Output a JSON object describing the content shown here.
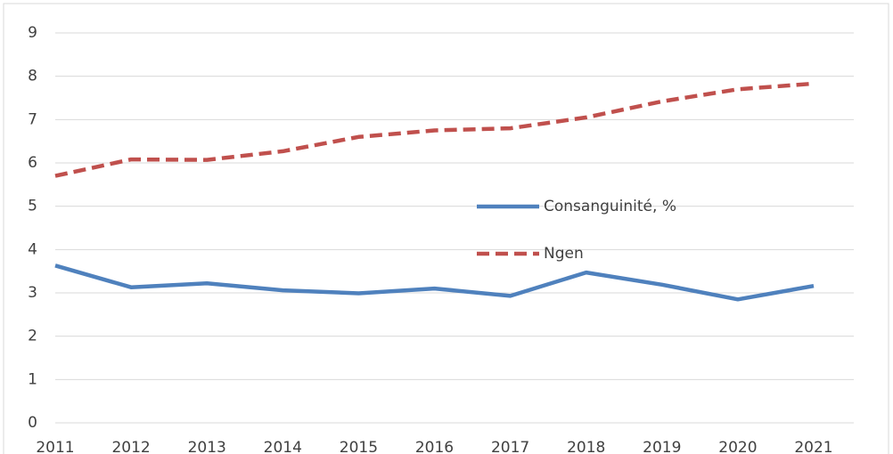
{
  "chart_data": {
    "type": "line",
    "categories": [
      "2011",
      "2012",
      "2013",
      "2014",
      "2015",
      "2016",
      "2017",
      "2018",
      "2019",
      "2020",
      "2021"
    ],
    "series": [
      {
        "name": "Consanguinité, %",
        "color": "#4f81bd",
        "dash": false,
        "values": [
          3.63,
          3.13,
          3.22,
          3.06,
          2.99,
          3.1,
          2.93,
          3.47,
          3.19,
          2.85,
          3.16
        ]
      },
      {
        "name": "Ngen",
        "color": "#c0504d",
        "dash": true,
        "values": [
          5.7,
          6.08,
          6.07,
          6.27,
          6.6,
          6.75,
          6.8,
          7.05,
          7.42,
          7.7,
          7.83
        ]
      }
    ],
    "ylim": [
      0,
      9
    ],
    "yticks": [
      0,
      1,
      2,
      3,
      4,
      5,
      6,
      7,
      8,
      9
    ],
    "grid": true
  }
}
